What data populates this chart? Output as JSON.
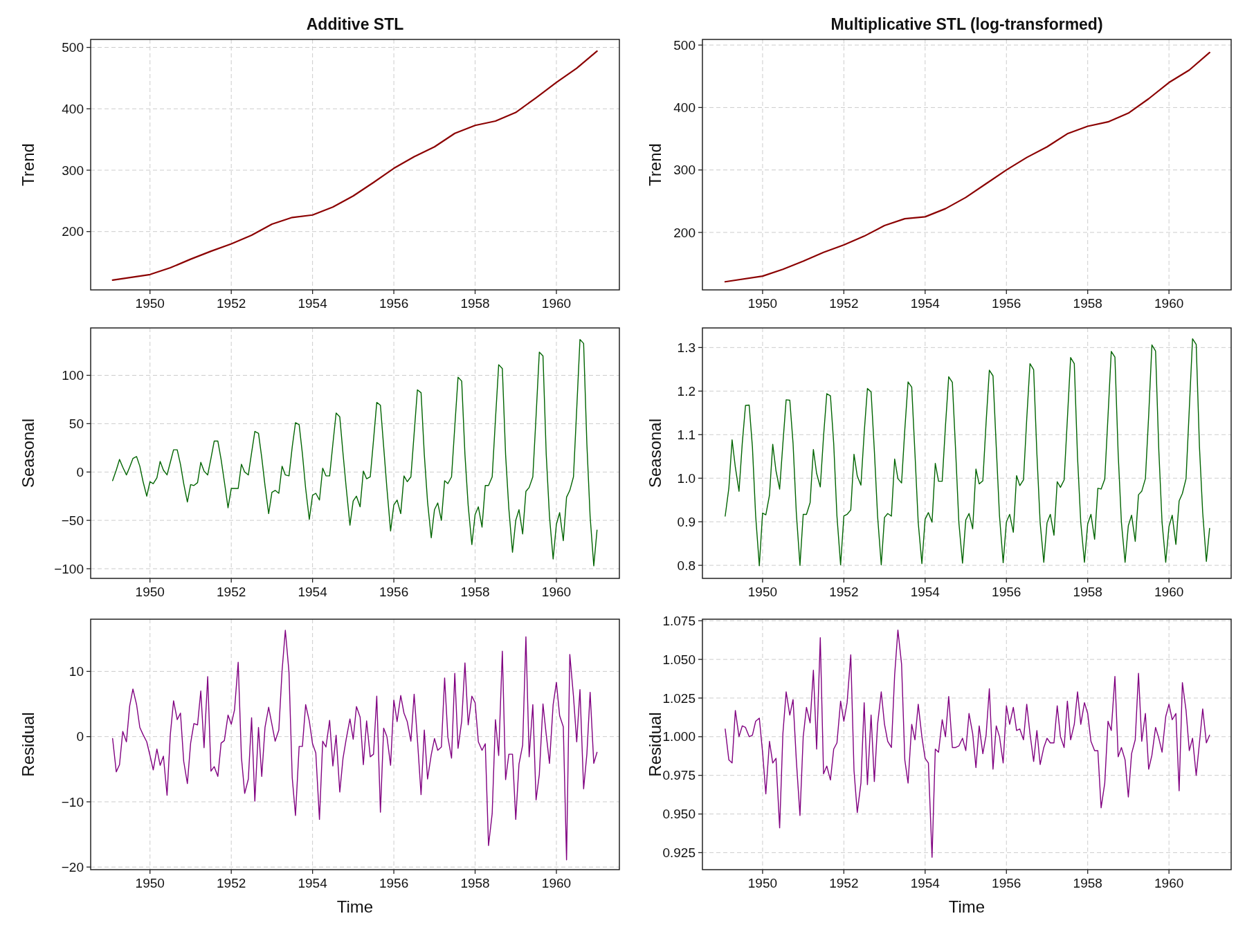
{
  "chart_data": [
    {
      "type": "line",
      "title": "Additive STL",
      "ylabel": "Trend",
      "xlim": [
        1948.54,
        1961.55
      ],
      "ylim": [
        105,
        513
      ],
      "xticks": [
        1950,
        1952,
        1954,
        1956,
        1958,
        1960
      ],
      "yticks": [
        200,
        300,
        400,
        500
      ],
      "grid": true,
      "line_style": "solid",
      "x": [
        1949.08,
        1950,
        1950.5,
        1951,
        1951.5,
        1952,
        1952.5,
        1953,
        1953.5,
        1954,
        1954.5,
        1955,
        1955.5,
        1956,
        1956.5,
        1957,
        1957.5,
        1958,
        1958.5,
        1959,
        1959.5,
        1960,
        1960.5,
        1961
      ],
      "series": [
        {
          "color": "#8b0000",
          "values": [
            121,
            130,
            141,
            155,
            168,
            180,
            194,
            212,
            223,
            227,
            240,
            258,
            280,
            303,
            322,
            338,
            360,
            373,
            380,
            394,
            418,
            443,
            466,
            494
          ]
        }
      ]
    },
    {
      "type": "line",
      "title": "Multiplicative STL (log-transformed)",
      "ylabel": "Trend",
      "xlim": [
        1948.52,
        1961.53
      ],
      "ylim": [
        108,
        509
      ],
      "xticks": [
        1950,
        1952,
        1954,
        1956,
        1958,
        1960
      ],
      "yticks": [
        200,
        300,
        400,
        500
      ],
      "grid": true,
      "line_style": "solid",
      "x": [
        1949.08,
        1950,
        1950.5,
        1951,
        1951.5,
        1952,
        1952.5,
        1953,
        1953.5,
        1954,
        1954.5,
        1955,
        1955.5,
        1956,
        1956.5,
        1957,
        1957.5,
        1958,
        1958.5,
        1959,
        1959.5,
        1960,
        1960.5,
        1961
      ],
      "series": [
        {
          "color": "#8b0000",
          "values": [
            121,
            130,
            141,
            154,
            168,
            180,
            194,
            211,
            222,
            225,
            238,
            256,
            278,
            300,
            320,
            337,
            358,
            370,
            377,
            391,
            414,
            440,
            460,
            488
          ]
        }
      ]
    },
    {
      "type": "line",
      "ylabel": "Seasonal",
      "xlim": [
        1948.54,
        1961.55
      ],
      "ylim": [
        -110,
        149
      ],
      "xticks": [
        1950,
        1952,
        1954,
        1956,
        1958,
        1960
      ],
      "yticks": [
        {
          "value": -100,
          "label": "−100"
        },
        {
          "value": -50,
          "label": "−50"
        },
        0,
        50,
        100
      ],
      "grid": true,
      "line_style": "solid",
      "x": [
        1949.08,
        1949.17,
        1949.25,
        1949.33,
        1949.42,
        1949.5,
        1949.58,
        1949.67,
        1949.75,
        1949.83,
        1949.92,
        1950,
        1950.08,
        1950.17,
        1950.25,
        1950.33,
        1950.42,
        1950.5,
        1950.58,
        1950.67,
        1950.75,
        1950.83,
        1950.92,
        1951,
        1951.08,
        1951.17,
        1951.25,
        1951.33,
        1951.42,
        1951.5,
        1951.58,
        1951.67,
        1951.75,
        1951.83,
        1951.92,
        1952,
        1952.08,
        1952.17,
        1952.25,
        1952.33,
        1952.42,
        1952.5,
        1952.58,
        1952.67,
        1952.75,
        1952.83,
        1952.92,
        1953,
        1953.08,
        1953.17,
        1953.25,
        1953.33,
        1953.42,
        1953.5,
        1953.58,
        1953.67,
        1953.75,
        1953.83,
        1953.92,
        1954,
        1954.08,
        1954.17,
        1954.25,
        1954.33,
        1954.42,
        1954.5,
        1954.58,
        1954.67,
        1954.75,
        1954.83,
        1954.92,
        1955,
        1955.08,
        1955.17,
        1955.25,
        1955.33,
        1955.42,
        1955.5,
        1955.58,
        1955.67,
        1955.75,
        1955.83,
        1955.92,
        1956,
        1956.08,
        1956.17,
        1956.25,
        1956.33,
        1956.42,
        1956.5,
        1956.58,
        1956.67,
        1956.75,
        1956.83,
        1956.92,
        1957,
        1957.08,
        1957.17,
        1957.25,
        1957.33,
        1957.42,
        1957.5,
        1957.58,
        1957.67,
        1957.75,
        1957.83,
        1957.92,
        1958,
        1958.08,
        1958.17,
        1958.25,
        1958.33,
        1958.42,
        1958.5,
        1958.58,
        1958.67,
        1958.75,
        1958.83,
        1958.92,
        1959,
        1959.08,
        1959.17,
        1959.25,
        1959.33,
        1959.42,
        1959.5,
        1959.58,
        1959.67,
        1959.75,
        1959.83,
        1959.92,
        1960,
        1960.08,
        1960.17,
        1960.25,
        1960.33,
        1960.42,
        1960.5,
        1960.58,
        1960.67,
        1960.75,
        1960.83,
        1960.92,
        1961
      ],
      "series": [
        {
          "color": "#006400",
          "values": [
            -9,
            2,
            13,
            5,
            -3,
            5,
            14,
            16,
            6,
            -10,
            -25,
            -10,
            -12,
            -6,
            11,
            2,
            -3,
            10,
            23,
            23,
            8,
            -12,
            -31,
            -13,
            -14,
            -11,
            10,
            1,
            -3,
            14,
            32,
            32,
            13,
            -10,
            -37,
            -17,
            -17,
            -17,
            8,
            0,
            -3,
            20,
            42,
            40,
            15,
            -14,
            -43,
            -21,
            -19,
            -22,
            6,
            -3,
            -4,
            26,
            51,
            49,
            19,
            -17,
            -49,
            -24,
            -22,
            -29,
            4,
            -4,
            -4,
            29,
            61,
            57,
            19,
            -17,
            -55,
            -30,
            -25,
            -36,
            1,
            -7,
            -5,
            33,
            72,
            69,
            26,
            -17,
            -61,
            -34,
            -29,
            -43,
            -4,
            -10,
            -5,
            40,
            85,
            82,
            18,
            -31,
            -68,
            -39,
            -32,
            -50,
            -9,
            -12,
            -5,
            47,
            98,
            94,
            18,
            -35,
            -75,
            -44,
            -36,
            -57,
            -14,
            -14,
            -5,
            54,
            111,
            107,
            18,
            -38,
            -83,
            -50,
            -39,
            -64,
            -20,
            -16,
            -5,
            58,
            124,
            120,
            18,
            -46,
            -90,
            -54,
            -42,
            -71,
            -26,
            -19,
            -5,
            65,
            137,
            133,
            29,
            -46,
            -97,
            -60
          ]
        }
      ]
    },
    {
      "type": "line",
      "ylabel": "Seasonal",
      "xlim": [
        1948.52,
        1961.53
      ],
      "ylim": [
        0.77,
        1.345
      ],
      "xticks": [
        1950,
        1952,
        1954,
        1956,
        1958,
        1960
      ],
      "yticks": [
        0.8,
        0.9,
        {
          "value": 1,
          "label": "1.0"
        },
        1.1,
        1.2,
        1.3
      ],
      "grid": true,
      "line_style": "solid",
      "x": [
        1949.08,
        1949.17,
        1949.25,
        1949.33,
        1949.42,
        1949.5,
        1949.58,
        1949.67,
        1949.75,
        1949.83,
        1949.92,
        1950,
        1950.08,
        1950.17,
        1950.25,
        1950.33,
        1950.42,
        1950.5,
        1950.58,
        1950.67,
        1950.75,
        1950.83,
        1950.92,
        1951,
        1951.08,
        1951.17,
        1951.25,
        1951.33,
        1951.42,
        1951.5,
        1951.58,
        1951.67,
        1951.75,
        1951.83,
        1951.92,
        1952,
        1952.08,
        1952.17,
        1952.25,
        1952.33,
        1952.42,
        1952.5,
        1952.58,
        1952.67,
        1952.75,
        1952.83,
        1952.92,
        1953,
        1953.08,
        1953.17,
        1953.25,
        1953.33,
        1953.42,
        1953.5,
        1953.58,
        1953.67,
        1953.75,
        1953.83,
        1953.92,
        1954,
        1954.08,
        1954.17,
        1954.25,
        1954.33,
        1954.42,
        1954.5,
        1954.58,
        1954.67,
        1954.75,
        1954.83,
        1954.92,
        1955,
        1955.08,
        1955.17,
        1955.25,
        1955.33,
        1955.42,
        1955.5,
        1955.58,
        1955.67,
        1955.75,
        1955.83,
        1955.92,
        1956,
        1956.08,
        1956.17,
        1956.25,
        1956.33,
        1956.42,
        1956.5,
        1956.58,
        1956.67,
        1956.75,
        1956.83,
        1956.92,
        1957,
        1957.08,
        1957.17,
        1957.25,
        1957.33,
        1957.42,
        1957.5,
        1957.58,
        1957.67,
        1957.75,
        1957.83,
        1957.92,
        1958,
        1958.08,
        1958.17,
        1958.25,
        1958.33,
        1958.42,
        1958.5,
        1958.58,
        1958.67,
        1958.75,
        1958.83,
        1958.92,
        1959,
        1959.08,
        1959.17,
        1959.25,
        1959.33,
        1959.42,
        1959.5,
        1959.58,
        1959.67,
        1959.75,
        1959.83,
        1959.92,
        1960,
        1960.08,
        1960.17,
        1960.25,
        1960.33,
        1960.42,
        1960.5,
        1960.58,
        1960.67,
        1960.75,
        1960.83,
        1960.92,
        1961
      ],
      "series": [
        {
          "color": "#006400",
          "values": [
            0.913,
            0.977,
            1.088,
            1.025,
            0.97,
            1.08,
            1.167,
            1.168,
            1.072,
            0.913,
            0.799,
            0.92,
            0.916,
            0.961,
            1.078,
            1.017,
            0.975,
            1.08,
            1.18,
            1.179,
            1.08,
            0.921,
            0.8,
            0.917,
            0.917,
            0.944,
            1.066,
            1.011,
            0.98,
            1.096,
            1.194,
            1.189,
            1.08,
            0.913,
            0.801,
            0.913,
            0.917,
            0.927,
            1.055,
            1.005,
            0.984,
            1.104,
            1.206,
            1.198,
            1.064,
            0.913,
            0.801,
            0.91,
            0.919,
            0.913,
            1.044,
            0.999,
            0.989,
            1.112,
            1.221,
            1.209,
            1.056,
            0.898,
            0.804,
            0.906,
            0.921,
            0.899,
            1.034,
            0.993,
            0.993,
            1.12,
            1.233,
            1.22,
            1.064,
            0.898,
            0.805,
            0.904,
            0.919,
            0.884,
            1.021,
            0.987,
            0.994,
            1.128,
            1.248,
            1.235,
            1.072,
            0.913,
            0.806,
            0.9,
            0.917,
            0.876,
            1.006,
            0.983,
            0.996,
            1.136,
            1.263,
            1.249,
            1.056,
            0.898,
            0.807,
            0.898,
            0.917,
            0.869,
            0.992,
            0.979,
            0.996,
            1.136,
            1.277,
            1.263,
            1.048,
            0.898,
            0.807,
            0.895,
            0.917,
            0.86,
            0.977,
            0.975,
            0.998,
            1.143,
            1.291,
            1.278,
            1.056,
            0.898,
            0.807,
            0.891,
            0.915,
            0.855,
            0.962,
            0.97,
            0.999,
            1.143,
            1.306,
            1.292,
            1.064,
            0.898,
            0.807,
            0.889,
            0.915,
            0.848,
            0.948,
            0.965,
            0.999,
            1.159,
            1.32,
            1.307,
            1.072,
            0.921,
            0.809,
            0.885
          ]
        }
      ]
    },
    {
      "type": "line",
      "ylabel": "Residual",
      "xlabel": "Time",
      "xlim": [
        1948.54,
        1961.55
      ],
      "ylim": [
        -20.4,
        18
      ],
      "xticks": [
        1950,
        1952,
        1954,
        1956,
        1958,
        1960
      ],
      "yticks": [
        {
          "value": -20,
          "label": "−20"
        },
        {
          "value": -10,
          "label": "−10"
        },
        0,
        10
      ],
      "grid": true,
      "line_style": "solid",
      "x": [
        1949.08,
        1949.17,
        1949.25,
        1949.33,
        1949.42,
        1949.5,
        1949.58,
        1949.67,
        1949.75,
        1949.83,
        1949.92,
        1950,
        1950.08,
        1950.17,
        1950.25,
        1950.33,
        1950.42,
        1950.5,
        1950.58,
        1950.67,
        1950.75,
        1950.83,
        1950.92,
        1951,
        1951.08,
        1951.17,
        1951.25,
        1951.33,
        1951.42,
        1951.5,
        1951.58,
        1951.67,
        1951.75,
        1951.83,
        1951.92,
        1952,
        1952.08,
        1952.17,
        1952.25,
        1952.33,
        1952.42,
        1952.5,
        1952.58,
        1952.67,
        1952.75,
        1952.83,
        1952.92,
        1953,
        1953.08,
        1953.17,
        1953.25,
        1953.33,
        1953.42,
        1953.5,
        1953.58,
        1953.67,
        1953.75,
        1953.83,
        1953.92,
        1954,
        1954.08,
        1954.17,
        1954.25,
        1954.33,
        1954.42,
        1954.5,
        1954.58,
        1954.67,
        1954.75,
        1954.83,
        1954.92,
        1955,
        1955.08,
        1955.17,
        1955.25,
        1955.33,
        1955.42,
        1955.5,
        1955.58,
        1955.67,
        1955.75,
        1955.83,
        1955.92,
        1956,
        1956.08,
        1956.17,
        1956.25,
        1956.33,
        1956.42,
        1956.5,
        1956.58,
        1956.67,
        1956.75,
        1956.83,
        1956.92,
        1957,
        1957.08,
        1957.17,
        1957.25,
        1957.33,
        1957.42,
        1957.5,
        1957.58,
        1957.67,
        1957.75,
        1957.83,
        1957.92,
        1958,
        1958.08,
        1958.17,
        1958.25,
        1958.33,
        1958.42,
        1958.5,
        1958.58,
        1958.67,
        1958.75,
        1958.83,
        1958.92,
        1959,
        1959.08,
        1959.17,
        1959.25,
        1959.33,
        1959.42,
        1959.5,
        1959.58,
        1959.67,
        1959.75,
        1959.83,
        1959.92,
        1960,
        1960.08,
        1960.17,
        1960.25,
        1960.33,
        1960.42,
        1960.5,
        1960.58,
        1960.67,
        1960.75,
        1960.83,
        1960.92,
        1961
      ],
      "series": [
        {
          "color": "#800080",
          "values": [
            -0.3,
            -5.4,
            -4.3,
            0.8,
            -0.8,
            4.7,
            7.3,
            4.9,
            1.4,
            0.3,
            -0.8,
            -2.9,
            -5.1,
            -1.9,
            -4.4,
            -3.0,
            -9.0,
            0.3,
            5.5,
            2.6,
            3.6,
            -3.8,
            -7.2,
            -1.0,
            2.0,
            1.8,
            7.0,
            -1.7,
            9.2,
            -5.3,
            -4.6,
            -6.1,
            -1.0,
            -0.6,
            3.3,
            1.9,
            4.1,
            11.4,
            -3.2,
            -8.7,
            -6.5,
            2.9,
            -9.9,
            1.4,
            -6.1,
            1.4,
            4.5,
            1.9,
            -0.7,
            1.0,
            10.1,
            16.3,
            9.9,
            -6.3,
            -12.1,
            -1.5,
            -1.5,
            4.9,
            2.4,
            -1.1,
            -2.5,
            -12.7,
            -0.7,
            -1.6,
            2.5,
            -4.5,
            0.2,
            -8.5,
            -3.3,
            -0.3,
            2.7,
            -0.4,
            4.6,
            3.0,
            -4.3,
            2.4,
            -3.1,
            -2.7,
            6.2,
            -11.6,
            1.3,
            0,
            -4.4,
            5.6,
            2.3,
            6.3,
            3.6,
            2.3,
            -0.7,
            6.5,
            -0.4,
            -8.9,
            1.0,
            -6.5,
            -2.8,
            -0.3,
            -2.1,
            -1.6,
            9.0,
            -0.1,
            -3.3,
            9.7,
            -1.8,
            2.4,
            11.3,
            1.8,
            6.2,
            5.2,
            -0.8,
            -2.1,
            -1.1,
            -16.7,
            -11.8,
            2.6,
            -2.9,
            13.1,
            -6.6,
            -2.7,
            -2.7,
            -12.7,
            -4.2,
            -1.3,
            15.3,
            -3.1,
            4.9,
            -9.7,
            -5.8,
            5.0,
            0.3,
            -4.1,
            4.9,
            8.3,
            3.2,
            1.5,
            -18.9,
            12.6,
            6.2,
            -0.8,
            7.2,
            -8.0,
            -2.7,
            6.8,
            -4.1,
            -2.4
          ]
        }
      ]
    },
    {
      "type": "line",
      "ylabel": "Residual",
      "xlabel": "Time",
      "xlim": [
        1948.52,
        1961.53
      ],
      "ylim": [
        0.914,
        1.076
      ],
      "xticks": [
        1950,
        1952,
        1954,
        1956,
        1958,
        1960
      ],
      "yticks": [
        0.925,
        {
          "value": 0.95,
          "label": "0.950"
        },
        0.975,
        {
          "value": 1,
          "label": "1.000"
        },
        1.025,
        {
          "value": 1.05,
          "label": "1.050"
        },
        1.075
      ],
      "grid": true,
      "line_style": "solid",
      "x": [
        1949.08,
        1949.17,
        1949.25,
        1949.33,
        1949.42,
        1949.5,
        1949.58,
        1949.67,
        1949.75,
        1949.83,
        1949.92,
        1950,
        1950.08,
        1950.17,
        1950.25,
        1950.33,
        1950.42,
        1950.5,
        1950.58,
        1950.67,
        1950.75,
        1950.83,
        1950.92,
        1951,
        1951.08,
        1951.17,
        1951.25,
        1951.33,
        1951.42,
        1951.5,
        1951.58,
        1951.67,
        1951.75,
        1951.83,
        1951.92,
        1952,
        1952.08,
        1952.17,
        1952.25,
        1952.33,
        1952.42,
        1952.5,
        1952.58,
        1952.67,
        1952.75,
        1952.83,
        1952.92,
        1953,
        1953.08,
        1953.17,
        1953.25,
        1953.33,
        1953.42,
        1953.5,
        1953.58,
        1953.67,
        1953.75,
        1953.83,
        1953.92,
        1954,
        1954.08,
        1954.17,
        1954.25,
        1954.33,
        1954.42,
        1954.5,
        1954.58,
        1954.67,
        1954.75,
        1954.83,
        1954.92,
        1955,
        1955.08,
        1955.17,
        1955.25,
        1955.33,
        1955.42,
        1955.5,
        1955.58,
        1955.67,
        1955.75,
        1955.83,
        1955.92,
        1956,
        1956.08,
        1956.17,
        1956.25,
        1956.33,
        1956.42,
        1956.5,
        1956.58,
        1956.67,
        1956.75,
        1956.83,
        1956.92,
        1957,
        1957.08,
        1957.17,
        1957.25,
        1957.33,
        1957.42,
        1957.5,
        1957.58,
        1957.67,
        1957.75,
        1957.83,
        1957.92,
        1958,
        1958.08,
        1958.17,
        1958.25,
        1958.33,
        1958.42,
        1958.5,
        1958.58,
        1958.67,
        1958.75,
        1958.83,
        1958.92,
        1959,
        1959.08,
        1959.17,
        1959.25,
        1959.33,
        1959.42,
        1959.5,
        1959.58,
        1959.67,
        1959.75,
        1959.83,
        1959.92,
        1960,
        1960.08,
        1960.17,
        1960.25,
        1960.33,
        1960.42,
        1960.5,
        1960.58,
        1960.67,
        1960.75,
        1960.83,
        1960.92,
        1961
      ],
      "series": [
        {
          "color": "#800080",
          "values": [
            1.005,
            0.985,
            0.983,
            1.017,
            1.0,
            1.007,
            1.006,
            1.0,
            1.001,
            1.01,
            1.012,
            0.99,
            0.963,
            0.997,
            0.983,
            0.986,
            0.941,
            1.002,
            1.029,
            1.014,
            1.024,
            0.985,
            0.949,
            1.0,
            1.019,
            1.009,
            1.043,
            0.992,
            1.064,
            0.976,
            0.981,
            0.972,
            0.992,
            0.996,
            1.023,
            1.01,
            1.022,
            1.053,
            0.978,
            0.951,
            0.97,
            1.022,
            0.969,
            1.014,
            0.971,
            1.008,
            1.029,
            1.008,
            0.997,
            0.993,
            1.04,
            1.069,
            1.047,
            0.985,
            0.97,
            1.008,
            0.998,
            1.021,
            1.0,
            0.986,
            0.983,
            0.922,
            0.992,
            0.99,
            1.011,
            1.0,
            1.026,
            0.993,
            0.993,
            0.994,
            0.999,
            0.991,
            1.015,
            1.002,
            0.98,
            1.007,
            0.989,
            1.001,
            1.031,
            0.979,
            1.007,
            1.0,
            0.983,
            1.02,
            1.008,
            1.019,
            1.004,
            1.005,
            0.998,
            1.021,
            1.002,
            0.984,
            1.004,
            0.982,
            0.993,
            0.999,
            0.996,
            0.996,
            1.02,
            1.0,
            0.993,
            1.023,
            0.998,
            1.008,
            1.029,
            1.008,
            1.022,
            1.015,
            0.997,
            0.991,
            0.991,
            0.954,
            0.97,
            1.01,
            1.004,
            1.039,
            0.987,
            0.993,
            0.985,
            0.961,
            0.989,
            0.998,
            1.041,
            0.997,
            1.015,
            0.979,
            0.988,
            1.006,
            0.999,
            0.99,
            1.013,
            1.021,
            1.011,
            1.015,
            0.965,
            1.035,
            1.017,
            0.991,
            0.999,
            0.975,
            0.996,
            1.018,
            0.996,
            1.001
          ]
        }
      ]
    }
  ]
}
